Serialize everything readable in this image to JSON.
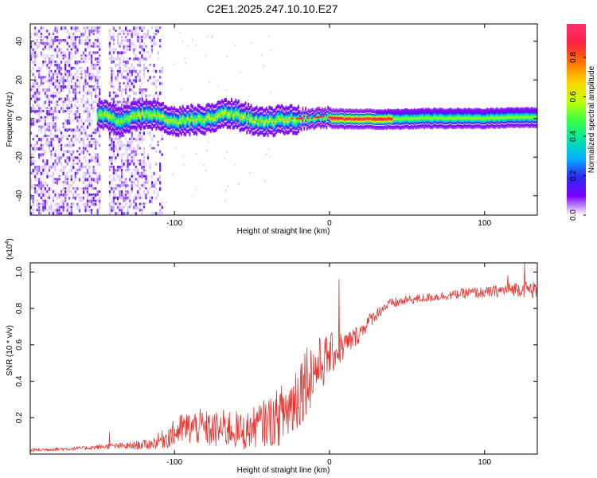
{
  "title": "C2E1.2025.247.10.10.E27",
  "chart_data": [
    {
      "type": "heatmap",
      "name": "spectrogram",
      "xlabel": "Height of straight line (km)",
      "ylabel": "Frequency (Hz)",
      "xlim": [
        -193,
        134
      ],
      "ylim": [
        -50,
        49
      ],
      "x_ticks": [
        -100,
        0,
        100
      ],
      "x_tick_labels": [
        "-100",
        "0",
        "100"
      ],
      "y_ticks": [
        -40,
        -20,
        0,
        20,
        40
      ],
      "y_tick_labels": [
        "-40",
        "-20",
        "0",
        "20",
        "40"
      ],
      "colorbar": {
        "label": "Normalized spectral amplitude",
        "range": [
          0,
          0.97
        ],
        "ticks": [
          0.0,
          0.2,
          0.4,
          0.6,
          0.8
        ],
        "tick_labels": [
          "0.0",
          "0.2",
          "0.4",
          "0.6",
          "0.8"
        ],
        "colormap": [
          "#ffffff",
          "#7a00ff",
          "#2a2aff",
          "#00b4ff",
          "#00e6a0",
          "#40ff40",
          "#c8ff00",
          "#ffd000",
          "#ff7000",
          "#ff2040",
          "#ff3070"
        ]
      },
      "ridge": {
        "x": [
          -145,
          -135,
          -120,
          -100,
          -80,
          -65,
          -55,
          -45,
          -35,
          -25,
          -15,
          -5,
          0,
          10,
          20,
          40,
          60,
          80,
          100,
          120,
          134
        ],
        "freq": [
          2,
          -1,
          3,
          -1,
          0,
          3,
          1,
          -2,
          -1,
          0,
          0,
          1,
          0.5,
          0,
          0,
          0,
          0.5,
          0.5,
          0.5,
          1,
          1
        ]
      }
    },
    {
      "type": "line",
      "name": "snr",
      "xlabel": "Height of straight line (km)",
      "ylabel": "SNR (10 * v/v)",
      "scale_label": "(x10",
      "scale_exp": "4",
      "scale_close": ")",
      "xlim": [
        -193,
        134
      ],
      "ylim": [
        0,
        1.05
      ],
      "x_ticks": [
        -100,
        0,
        100
      ],
      "x_tick_labels": [
        "-100",
        "0",
        "100"
      ],
      "y_ticks": [
        0.2,
        0.4,
        0.6,
        0.8,
        1.0
      ],
      "y_tick_labels": [
        "0.2",
        "0.4",
        "0.6",
        "0.8",
        "1.0"
      ],
      "line_color": "#e8302c",
      "envelope": {
        "x": [
          -193,
          -160,
          -142,
          -130,
          -115,
          -105,
          -95,
          -85,
          -75,
          -65,
          -55,
          -45,
          -35,
          -25,
          -20,
          -15,
          -10,
          -5,
          0,
          5,
          10,
          15,
          20,
          25,
          30,
          35,
          40,
          50,
          60,
          70,
          80,
          90,
          100,
          110,
          120,
          134
        ],
        "baseline": [
          0.02,
          0.03,
          0.04,
          0.04,
          0.05,
          0.08,
          0.12,
          0.13,
          0.11,
          0.12,
          0.1,
          0.14,
          0.16,
          0.22,
          0.3,
          0.38,
          0.42,
          0.47,
          0.52,
          0.55,
          0.58,
          0.62,
          0.66,
          0.72,
          0.76,
          0.8,
          0.82,
          0.84,
          0.85,
          0.86,
          0.87,
          0.88,
          0.88,
          0.89,
          0.9,
          0.89
        ],
        "noise": [
          0.01,
          0.01,
          0.015,
          0.02,
          0.03,
          0.06,
          0.09,
          0.1,
          0.1,
          0.11,
          0.1,
          0.12,
          0.15,
          0.2,
          0.22,
          0.2,
          0.18,
          0.15,
          0.12,
          0.1,
          0.08,
          0.06,
          0.05,
          0.04,
          0.035,
          0.03,
          0.03,
          0.025,
          0.025,
          0.025,
          0.025,
          0.03,
          0.03,
          0.035,
          0.04,
          0.05
        ]
      },
      "peaks": [
        {
          "x": -142,
          "y": 0.12
        },
        {
          "x": 6,
          "y": 0.96
        },
        {
          "x": 115,
          "y": 0.98
        },
        {
          "x": 126,
          "y": 1.05
        }
      ]
    }
  ]
}
